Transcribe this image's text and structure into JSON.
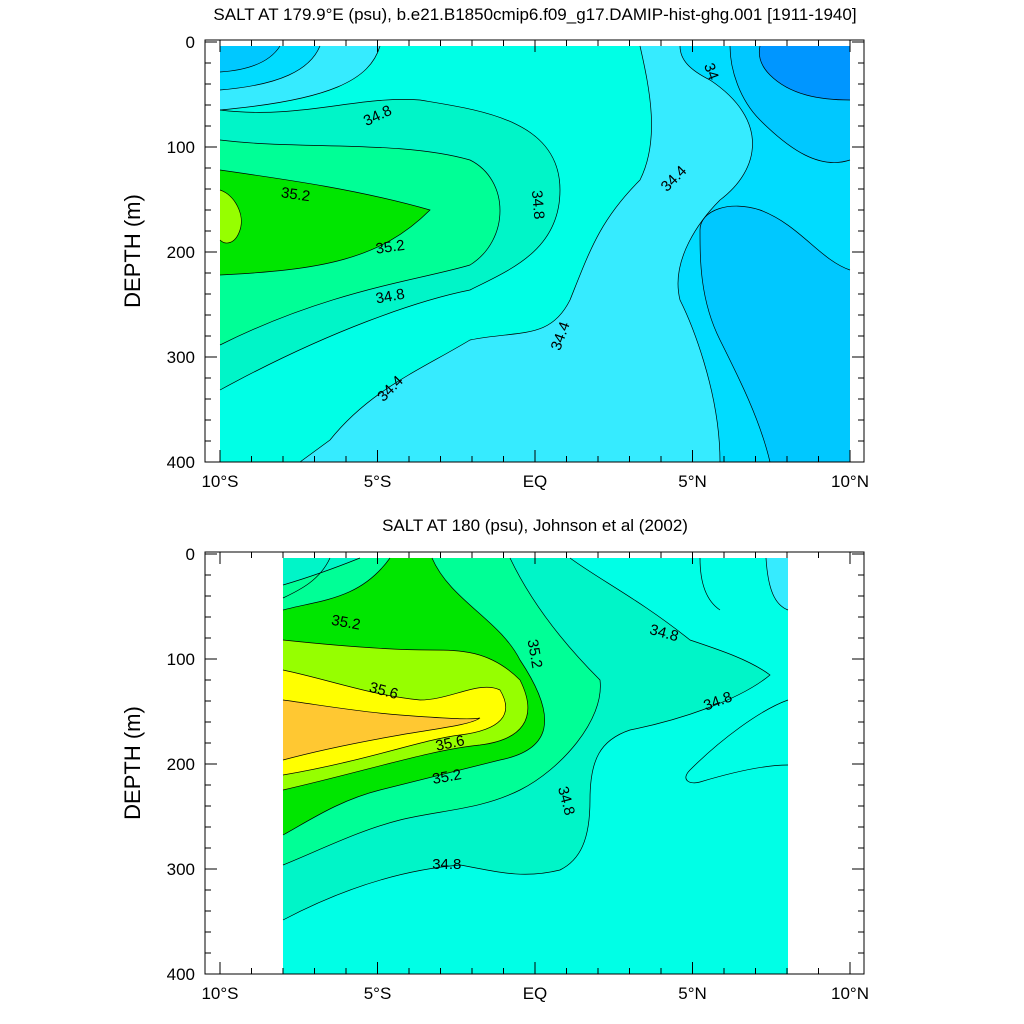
{
  "chart_data": [
    {
      "type": "contour",
      "title": "SALT AT 179.9°E (psu), b.e21.B1850cmip6.f09_g17.DAMIP-hist-ghg.001 [1911-1940]",
      "ylabel": "DEPTH (m)",
      "xlabel": "",
      "xlim": [
        -10,
        10
      ],
      "ylim": [
        400,
        0
      ],
      "x_ticks": [
        -10,
        -5,
        0,
        5,
        10
      ],
      "x_tick_labels": [
        "10°S",
        "5°S",
        "EQ",
        "5°N",
        "10°N"
      ],
      "y_ticks": [
        0,
        100,
        200,
        300,
        400
      ],
      "y_tick_labels": [
        "0",
        "100",
        "200",
        "300",
        "400"
      ],
      "contour_labels": [
        {
          "text": "34.8",
          "x": -5.0,
          "y": 70,
          "angle": -25
        },
        {
          "text": "35.2",
          "x": -7.6,
          "y": 145,
          "angle": 8
        },
        {
          "text": "35.2",
          "x": -4.6,
          "y": 195,
          "angle": -8
        },
        {
          "text": "34.8",
          "x": -4.6,
          "y": 242,
          "angle": -10
        },
        {
          "text": "34.8",
          "x": 0.1,
          "y": 155,
          "angle": 85
        },
        {
          "text": "34.4",
          "x": -4.6,
          "y": 330,
          "angle": -45
        },
        {
          "text": "34.4",
          "x": 0.8,
          "y": 280,
          "angle": -70
        },
        {
          "text": "34.4",
          "x": 4.4,
          "y": 130,
          "angle": -45
        },
        {
          "text": "34",
          "x": 5.6,
          "y": 28,
          "angle": 70
        }
      ]
    },
    {
      "type": "contour",
      "title": "SALT AT 180 (psu), Johnson et al (2002)",
      "ylabel": "DEPTH (m)",
      "xlabel": "",
      "xlim": [
        -10,
        10
      ],
      "ylim": [
        400,
        0
      ],
      "data_extent": [
        -8,
        8
      ],
      "x_ticks": [
        -10,
        -5,
        0,
        5,
        10
      ],
      "x_tick_labels": [
        "10°S",
        "5°S",
        "EQ",
        "5°N",
        "10°N"
      ],
      "y_ticks": [
        0,
        100,
        200,
        300,
        400
      ],
      "y_tick_labels": [
        "0",
        "100",
        "200",
        "300",
        "400"
      ],
      "contour_labels": [
        {
          "text": "35.2",
          "x": -6.0,
          "y": 65,
          "angle": 10
        },
        {
          "text": "35.6",
          "x": -4.8,
          "y": 130,
          "angle": 15
        },
        {
          "text": "35.6",
          "x": -2.7,
          "y": 180,
          "angle": -12
        },
        {
          "text": "35.2",
          "x": -2.8,
          "y": 212,
          "angle": -10
        },
        {
          "text": "35.2",
          "x": 0.0,
          "y": 95,
          "angle": 80
        },
        {
          "text": "34.8",
          "x": 1.0,
          "y": 235,
          "angle": 75
        },
        {
          "text": "34.8",
          "x": -2.8,
          "y": 295,
          "angle": 0
        },
        {
          "text": "34.8",
          "x": 4.1,
          "y": 75,
          "angle": 15
        },
        {
          "text": "34.8",
          "x": 5.8,
          "y": 140,
          "angle": -20
        }
      ]
    }
  ],
  "colors": {
    "c_33_8": "#0096ff",
    "c_34_0": "#00c8ff",
    "c_34_2": "#00dcff",
    "c_34_4": "#36ebff",
    "c_34_6": "#00ffe6",
    "c_34_8": "#00f5c8",
    "c_35_0": "#00ff96",
    "c_35_2": "#00e600",
    "c_35_4": "#96ff00",
    "c_35_6": "#ffff00",
    "c_35_8": "#ffc832"
  }
}
